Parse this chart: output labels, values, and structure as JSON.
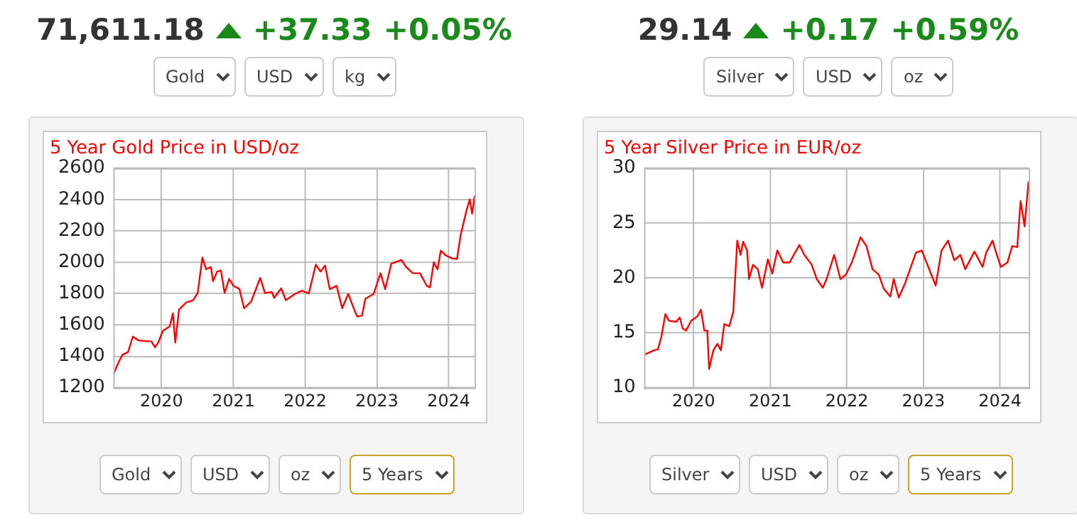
{
  "chart_data": [
    {
      "type": "other",
      "title": "71,611.18",
      "annotations": [
        "+37.33",
        "+0.05%",
        "Gold",
        "USD",
        "kg"
      ]
    },
    {
      "type": "line",
      "title": "5 Year Gold Price in USD/oz",
      "grid": true,
      "legend": false,
      "marker": "none",
      "xlim": [
        "2019-05-01",
        "2024-05-12"
      ],
      "xticks": [
        {
          "value": "2020-01-01",
          "label": "2020"
        },
        {
          "value": "2021-01-01",
          "label": "2021"
        },
        {
          "value": "2022-01-01",
          "label": "2022"
        },
        {
          "value": "2023-01-01",
          "label": "2023"
        },
        {
          "value": "2024-01-01",
          "label": "2024"
        }
      ],
      "ylim": [
        1200,
        2600
      ],
      "yticks": [
        1200,
        1400,
        1600,
        1800,
        2000,
        2200,
        2400,
        2600
      ],
      "annotations": [
        "Gold",
        "USD",
        "oz",
        "5 Years"
      ],
      "x": [
        "2019-05-01",
        "2019-05-29",
        "2019-06-17",
        "2019-07-15",
        "2019-08-08",
        "2019-09-05",
        "2019-10-17",
        "2019-11-10",
        "2019-11-29",
        "2019-12-15",
        "2020-01-08",
        "2020-02-12",
        "2020-02-28",
        "2020-03-11",
        "2020-03-30",
        "2020-05-05",
        "2020-06-10",
        "2020-07-03",
        "2020-07-27",
        "2020-08-15",
        "2020-09-08",
        "2020-09-19",
        "2020-10-10",
        "2020-10-29",
        "2020-11-17",
        "2020-12-10",
        "2021-01-01",
        "2021-01-31",
        "2021-02-24",
        "2021-04-01",
        "2021-05-17",
        "2021-06-10",
        "2021-07-15",
        "2021-07-27",
        "2021-09-01",
        "2021-09-24",
        "2021-11-10",
        "2021-12-15",
        "2022-01-19",
        "2022-02-24",
        "2022-03-20",
        "2022-04-12",
        "2022-05-06",
        "2022-06-10",
        "2022-07-08",
        "2022-08-08",
        "2022-09-12",
        "2022-09-24",
        "2022-10-17",
        "2022-11-03",
        "2022-12-15",
        "2023-01-19",
        "2023-02-12",
        "2023-03-15",
        "2023-05-06",
        "2023-05-29",
        "2023-07-03",
        "2023-08-08",
        "2023-09-12",
        "2023-09-28",
        "2023-10-17",
        "2023-11-05",
        "2023-11-22",
        "2023-12-15",
        "2024-01-19",
        "2024-02-12",
        "2024-03-03",
        "2024-04-01",
        "2024-04-17",
        "2024-04-29",
        "2024-05-12"
      ],
      "series": [
        {
          "color": "#ff0000",
          "values": [
            1285,
            1366,
            1411,
            1427,
            1526,
            1502,
            1496,
            1496,
            1457,
            1487,
            1562,
            1592,
            1674,
            1487,
            1698,
            1743,
            1758,
            1804,
            2030,
            1955,
            1970,
            1879,
            1940,
            1948,
            1804,
            1894,
            1849,
            1830,
            1707,
            1749,
            1900,
            1804,
            1810,
            1773,
            1834,
            1758,
            1798,
            1819,
            1800,
            1985,
            1940,
            1979,
            1828,
            1849,
            1707,
            1798,
            1683,
            1653,
            1660,
            1767,
            1798,
            1930,
            1828,
            1991,
            2015,
            1970,
            1930,
            1930,
            1849,
            1840,
            2000,
            1955,
            2075,
            2045,
            2024,
            2021,
            2181,
            2332,
            2401,
            2310,
            2422
          ]
        }
      ]
    },
    {
      "type": "other",
      "title": "29.14",
      "annotations": [
        "+0.17",
        "+0.59%",
        "Silver",
        "USD",
        "oz"
      ]
    },
    {
      "type": "line",
      "title": "5 Year Silver Price in EUR/oz",
      "grid": true,
      "legend": false,
      "marker": "none",
      "xlim": [
        "2019-05-10",
        "2024-05-17"
      ],
      "xticks": [
        {
          "value": "2020-01-01",
          "label": "2020"
        },
        {
          "value": "2021-01-01",
          "label": "2021"
        },
        {
          "value": "2022-01-01",
          "label": "2022"
        },
        {
          "value": "2023-01-01",
          "label": "2023"
        },
        {
          "value": "2024-01-01",
          "label": "2024"
        }
      ],
      "ylim": [
        10,
        30
      ],
      "yticks": [
        10,
        15,
        20,
        25,
        30
      ],
      "annotations": [
        "Silver",
        "USD",
        "oz",
        "5 Years"
      ],
      "x": [
        "2019-05-10",
        "2019-06-26",
        "2019-07-15",
        "2019-08-01",
        "2019-08-19",
        "2019-09-05",
        "2019-10-10",
        "2019-10-27",
        "2019-11-10",
        "2019-11-26",
        "2019-12-20",
        "2020-01-19",
        "2020-02-05",
        "2020-02-21",
        "2020-03-06",
        "2020-03-15",
        "2020-04-04",
        "2020-04-23",
        "2020-05-10",
        "2020-05-26",
        "2020-06-19",
        "2020-07-08",
        "2020-07-27",
        "2020-08-12",
        "2020-08-24",
        "2020-09-12",
        "2020-09-21",
        "2020-10-10",
        "2020-11-02",
        "2020-11-22",
        "2020-12-20",
        "2021-01-10",
        "2021-02-03",
        "2021-03-03",
        "2021-04-02",
        "2021-05-19",
        "2021-06-12",
        "2021-07-17",
        "2021-08-10",
        "2021-09-08",
        "2021-09-26",
        "2021-11-01",
        "2021-12-01",
        "2021-12-27",
        "2022-01-24",
        "2022-03-07",
        "2022-04-04",
        "2022-05-03",
        "2022-06-02",
        "2022-06-26",
        "2022-07-27",
        "2022-08-12",
        "2022-09-05",
        "2022-10-05",
        "2022-10-29",
        "2022-11-26",
        "2022-12-24",
        "2023-01-24",
        "2023-02-28",
        "2023-03-28",
        "2023-04-28",
        "2023-05-28",
        "2023-06-26",
        "2023-07-19",
        "2023-09-01",
        "2023-10-10",
        "2023-10-27",
        "2023-11-26",
        "2023-12-20",
        "2024-01-05",
        "2024-02-05",
        "2024-02-28",
        "2024-03-23",
        "2024-04-08",
        "2024-04-27",
        "2024-05-16"
      ],
      "series": [
        {
          "color": "#ff0000",
          "values": [
            13.0,
            13.4,
            13.5,
            14.7,
            16.7,
            16.1,
            16.0,
            16.4,
            15.4,
            15.2,
            16.1,
            16.5,
            17.1,
            15.2,
            15.2,
            11.7,
            13.4,
            14.0,
            13.4,
            15.8,
            15.6,
            16.9,
            23.4,
            22.1,
            23.3,
            22.5,
            19.9,
            21.2,
            20.8,
            19.1,
            21.7,
            20.4,
            22.5,
            21.4,
            21.4,
            23.0,
            22.1,
            21.2,
            19.9,
            19.1,
            19.9,
            22.1,
            19.9,
            20.3,
            21.4,
            23.7,
            22.9,
            20.8,
            20.3,
            19.0,
            18.3,
            19.9,
            18.2,
            19.5,
            20.8,
            22.3,
            22.5,
            21.0,
            19.3,
            22.5,
            23.4,
            21.6,
            22.1,
            20.8,
            22.4,
            21.0,
            22.3,
            23.4,
            21.9,
            21.0,
            21.4,
            22.9,
            22.8,
            27.0,
            24.7,
            28.8
          ]
        }
      ]
    }
  ]
}
